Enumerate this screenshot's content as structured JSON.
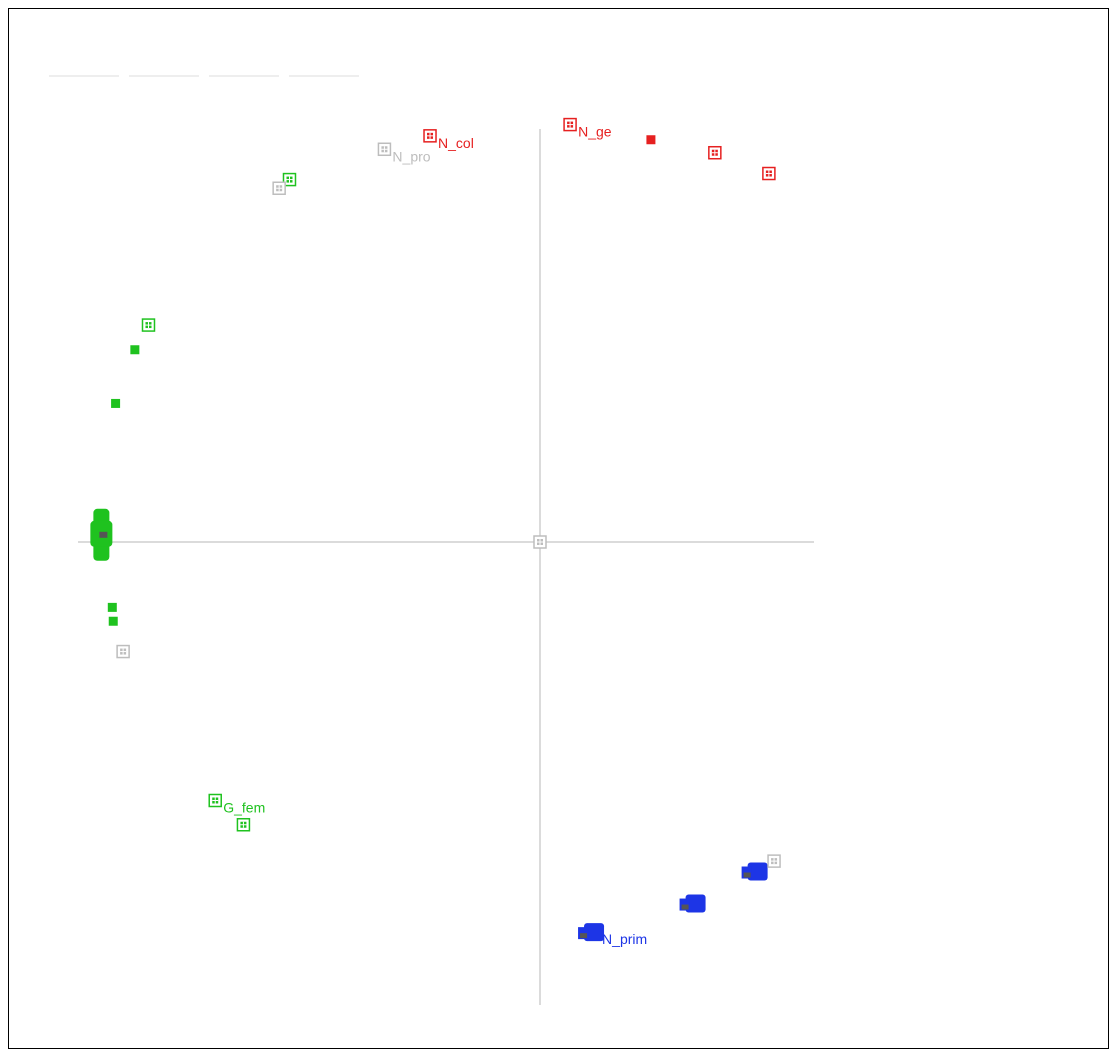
{
  "chart_data": {
    "type": "scatter",
    "title": "",
    "xlabel": "",
    "ylabel": "",
    "xlim": [
      -1.0,
      0.6
    ],
    "ylim": [
      -1.0,
      1.0
    ],
    "grid": false,
    "axes_through_origin": true,
    "colors": {
      "red": "#e62020",
      "green": "#1fc21f",
      "blue": "#1d35e6",
      "gray": "#bdbdbd",
      "axis": "#cfcfcf"
    },
    "series": [
      {
        "color": "red",
        "points": [
          {
            "x": -0.234,
            "y": 0.938,
            "label": "N_col",
            "marker": "boxed"
          },
          {
            "x": 0.064,
            "y": 0.964,
            "label": "N_ge",
            "marker": "boxed"
          },
          {
            "x": 0.236,
            "y": 0.929,
            "label": "",
            "marker": "filled"
          },
          {
            "x": 0.372,
            "y": 0.899,
            "label": "",
            "marker": "boxed"
          },
          {
            "x": 0.487,
            "y": 0.851,
            "label": "",
            "marker": "boxed"
          }
        ]
      },
      {
        "color": "green",
        "points": [
          {
            "x": -0.533,
            "y": 0.837,
            "label": "",
            "marker": "boxed"
          },
          {
            "x": -0.833,
            "y": 0.501,
            "label": "",
            "marker": "boxed"
          },
          {
            "x": -0.862,
            "y": 0.444,
            "label": "",
            "marker": "filled"
          },
          {
            "x": -0.903,
            "y": 0.32,
            "label": "",
            "marker": "filled"
          },
          {
            "x": -0.929,
            "y": 0.012,
            "label": "",
            "marker": "cluster"
          },
          {
            "x": -0.91,
            "y": -0.151,
            "label": "",
            "marker": "filled"
          },
          {
            "x": -0.908,
            "y": -0.183,
            "label": "",
            "marker": "filled"
          },
          {
            "x": -0.691,
            "y": -0.597,
            "label": "G_fem",
            "marker": "boxed"
          },
          {
            "x": -0.631,
            "y": -0.653,
            "label": "",
            "marker": "boxed"
          }
        ]
      },
      {
        "color": "blue",
        "points": [
          {
            "x": 0.115,
            "y": -0.901,
            "label": "N_prim",
            "marker": "cluster"
          },
          {
            "x": 0.331,
            "y": -0.835,
            "label": "",
            "marker": "cluster"
          },
          {
            "x": 0.463,
            "y": -0.761,
            "label": "",
            "marker": "cluster"
          }
        ]
      },
      {
        "color": "gray",
        "points": [
          {
            "x": -0.331,
            "y": 0.907,
            "label": "N_pro",
            "marker": "boxed"
          },
          {
            "x": -0.555,
            "y": 0.817,
            "label": "",
            "marker": "boxed"
          },
          {
            "x": 0.0,
            "y": 0.0,
            "label": "",
            "marker": "boxed"
          },
          {
            "x": -0.887,
            "y": -0.253,
            "label": "",
            "marker": "boxed"
          },
          {
            "x": 0.498,
            "y": -0.737,
            "label": "",
            "marker": "boxed"
          }
        ]
      }
    ]
  }
}
